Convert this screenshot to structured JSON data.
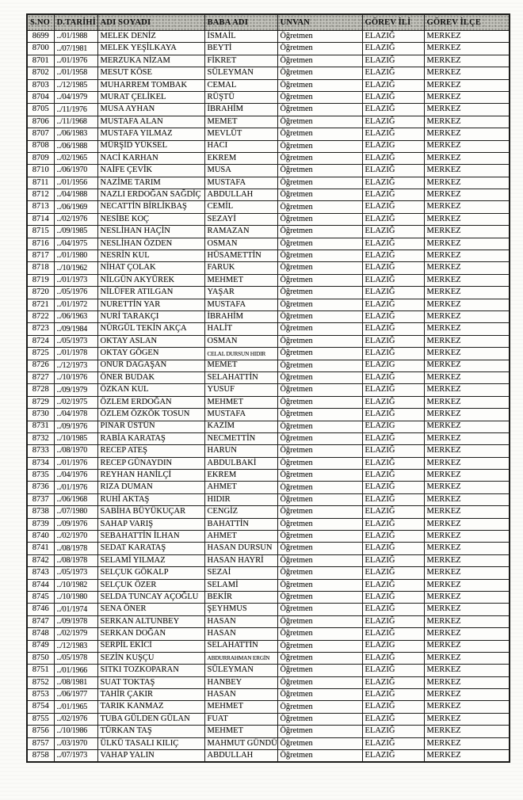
{
  "table": {
    "columns": [
      "S.NO",
      "D.TARİHİ",
      "ADI SOYADI",
      "BABA ADI",
      "UNVAN",
      "GÖREV İLİ",
      "GÖREV İLÇE"
    ],
    "col_keys": [
      "sno",
      "d-tarihi",
      "adi-soyadi",
      "baba-adi",
      "unvan",
      "gorev-ili",
      "gorev-ilce"
    ],
    "small_cells": [
      [
        26,
        3
      ],
      [
        51,
        3
      ]
    ],
    "rows": [
      [
        "8699",
        "../01/1988",
        "MELEK DENİZ",
        "İSMAİL",
        "Öğretmen",
        "ELAZIĞ",
        "MERKEZ"
      ],
      [
        "8700",
        "../07/1981",
        "MELEK YEŞİLKAYA",
        "BEYTİ",
        "Öğretmen",
        "ELAZIĞ",
        "MERKEZ"
      ],
      [
        "8701",
        "../01/1976",
        "MERZUKA NİZAM",
        "FİKRET",
        "Öğretmen",
        "ELAZIĞ",
        "MERKEZ"
      ],
      [
        "8702",
        "../01/1958",
        "MESUT KÖSE",
        "SÜLEYMAN",
        "Öğretmen",
        "ELAZIĞ",
        "MERKEZ"
      ],
      [
        "8703",
        "../12/1985",
        "MUHARREM TOMBAK",
        "CEMAL",
        "Öğretmen",
        "ELAZIĞ",
        "MERKEZ"
      ],
      [
        "8704",
        "../04/1979",
        "MURAT ÇELİKEL",
        "RÜŞTÜ",
        "Öğretmen",
        "ELAZIĞ",
        "MERKEZ"
      ],
      [
        "8705",
        "../11/1976",
        "MUSA AYHAN",
        "İBRAHİM",
        "Öğretmen",
        "ELAZIĞ",
        "MERKEZ"
      ],
      [
        "8706",
        "../11/1968",
        "MUSTAFA ALAN",
        "MEMET",
        "Öğretmen",
        "ELAZIĞ",
        "MERKEZ"
      ],
      [
        "8707",
        "../06/1983",
        "MUSTAFA YILMAZ",
        "MEVLÜT",
        "Öğretmen",
        "ELAZIĞ",
        "MERKEZ"
      ],
      [
        "8708",
        "../06/1988",
        "MÜRŞİD YÜKSEL",
        "HACI",
        "Öğretmen",
        "ELAZIĞ",
        "MERKEZ"
      ],
      [
        "8709",
        "../02/1965",
        "NACİ KARHAN",
        "EKREM",
        "Öğretmen",
        "ELAZIĞ",
        "MERKEZ"
      ],
      [
        "8710",
        "../06/1970",
        "NAİFE ÇEVİK",
        "MUSA",
        "Öğretmen",
        "ELAZIĞ",
        "MERKEZ"
      ],
      [
        "8711",
        "../01/1956",
        "NAZİME TARIM",
        "MUSTAFA",
        "Öğretmen",
        "ELAZIĞ",
        "MERKEZ"
      ],
      [
        "8712",
        "../04/1988",
        "NAZLI ERDOĞAN SAĞDİÇ",
        "ABDULLAH",
        "Öğretmen",
        "ELAZIĞ",
        "MERKEZ"
      ],
      [
        "8713",
        "../06/1969",
        "NECATTİN BİRLİKBAŞ",
        "CEMİL",
        "Öğretmen",
        "ELAZIĞ",
        "MERKEZ"
      ],
      [
        "8714",
        "../02/1976",
        "NESİBE KOÇ",
        "SEZAYİ",
        "Öğretmen",
        "ELAZIĞ",
        "MERKEZ"
      ],
      [
        "8715",
        "../09/1985",
        "NESLİHAN HAÇİN",
        "RAMAZAN",
        "Öğretmen",
        "ELAZIĞ",
        "MERKEZ"
      ],
      [
        "8716",
        "../04/1975",
        "NESLİHAN ÖZDEN",
        "OSMAN",
        "Öğretmen",
        "ELAZIĞ",
        "MERKEZ"
      ],
      [
        "8717",
        "../01/1980",
        "NESRİN KUL",
        "HÜSAMETTİN",
        "Öğretmen",
        "ELAZIĞ",
        "MERKEZ"
      ],
      [
        "8718",
        "../10/1962",
        "NİHAT ÇOLAK",
        "FARUK",
        "Öğretmen",
        "ELAZIĞ",
        "MERKEZ"
      ],
      [
        "8719",
        "../01/1973",
        "NİLGÜN AKYÜREK",
        "MEHMET",
        "Öğretmen",
        "ELAZIĞ",
        "MERKEZ"
      ],
      [
        "8720",
        "../05/1976",
        "NİLÜFER ATILGAN",
        "YAŞAR",
        "Öğretmen",
        "ELAZIĞ",
        "MERKEZ"
      ],
      [
        "8721",
        "../01/1972",
        "NURETTİN YAR",
        "MUSTAFA",
        "Öğretmen",
        "ELAZIĞ",
        "MERKEZ"
      ],
      [
        "8722",
        "../06/1963",
        "NURİ TARAKÇI",
        "İBRAHİM",
        "Öğretmen",
        "ELAZIĞ",
        "MERKEZ"
      ],
      [
        "8723",
        "../09/1984",
        "NÜRGÜL TEKİN AKÇA",
        "HALİT",
        "Öğretmen",
        "ELAZIĞ",
        "MERKEZ"
      ],
      [
        "8724",
        "../05/1973",
        "OKTAY ASLAN",
        "OSMAN",
        "Öğretmen",
        "ELAZIĞ",
        "MERKEZ"
      ],
      [
        "8725",
        "../01/1978",
        "OKTAY GÖGEN",
        "CELAL DURSUN HIDIR",
        "Öğretmen",
        "ELAZIĞ",
        "MERKEZ"
      ],
      [
        "8726",
        "../12/1973",
        "ONUR DAĞAŞAN",
        "MEMET",
        "Öğretmen",
        "ELAZIĞ",
        "MERKEZ"
      ],
      [
        "8727",
        "../10/1976",
        "ÖNER BUDAK",
        "SELAHATTİN",
        "Öğretmen",
        "ELAZIĞ",
        "MERKEZ"
      ],
      [
        "8728",
        "../09/1979",
        "ÖZKAN KUL",
        "YUSUF",
        "Öğretmen",
        "ELAZIĞ",
        "MERKEZ"
      ],
      [
        "8729",
        "../02/1975",
        "ÖZLEM ERDOĞAN",
        "MEHMET",
        "Öğretmen",
        "ELAZIĞ",
        "MERKEZ"
      ],
      [
        "8730",
        "../04/1978",
        "ÖZLEM ÖZKÖK TOSUN",
        "MUSTAFA",
        "Öğretmen",
        "ELAZIĞ",
        "MERKEZ"
      ],
      [
        "8731",
        "../09/1976",
        "PINAR ÜSTÜN",
        "KAZİM",
        "Öğretmen",
        "ELAZIĞ",
        "MERKEZ"
      ],
      [
        "8732",
        "../10/1985",
        "RABİA KARATAŞ",
        "NECMETTİN",
        "Öğretmen",
        "ELAZIĞ",
        "MERKEZ"
      ],
      [
        "8733",
        "../08/1970",
        "RECEP ATEŞ",
        "HARUN",
        "Öğretmen",
        "ELAZIĞ",
        "MERKEZ"
      ],
      [
        "8734",
        "../01/1976",
        "RECEP GÜNAYDIN",
        "ABDULBAKİ",
        "Öğretmen",
        "ELAZIĞ",
        "MERKEZ"
      ],
      [
        "8735",
        "../04/1976",
        "REYHAN HANİLÇİ",
        "EKREM",
        "Öğretmen",
        "ELAZIĞ",
        "MERKEZ"
      ],
      [
        "8736",
        "../01/1976",
        "RIZA DUMAN",
        "AHMET",
        "Öğretmen",
        "ELAZIĞ",
        "MERKEZ"
      ],
      [
        "8737",
        "../06/1968",
        "RUHİ AKTAŞ",
        "HIDIR",
        "Öğretmen",
        "ELAZIĞ",
        "MERKEZ"
      ],
      [
        "8738",
        "../07/1980",
        "SABİHA BÜYÜKUÇAR",
        "CENGİZ",
        "Öğretmen",
        "ELAZIĞ",
        "MERKEZ"
      ],
      [
        "8739",
        "../09/1976",
        "SAHAP VARIŞ",
        "BAHATTİN",
        "Öğretmen",
        "ELAZIĞ",
        "MERKEZ"
      ],
      [
        "8740",
        "../02/1970",
        "SEBAHATTİN İLHAN",
        "AHMET",
        "Öğretmen",
        "ELAZIĞ",
        "MERKEZ"
      ],
      [
        "8741",
        "../08/1978",
        "SEDAT KARATAŞ",
        "HASAN DURSUN",
        "Öğretmen",
        "ELAZIĞ",
        "MERKEZ"
      ],
      [
        "8742",
        "../08/1978",
        "SELAMİ YILMAZ",
        "HASAN HAYRİ",
        "Öğretmen",
        "ELAZIĞ",
        "MERKEZ"
      ],
      [
        "8743",
        "../05/1973",
        "SELÇUK GÖKALP",
        "SEZAİ",
        "Öğretmen",
        "ELAZIĞ",
        "MERKEZ"
      ],
      [
        "8744",
        "../10/1982",
        "SELÇUK ÖZER",
        "SELAMİ",
        "Öğretmen",
        "ELAZIĞ",
        "MERKEZ"
      ],
      [
        "8745",
        "../10/1980",
        "SELDA TUNCAY AÇOĞLU",
        "BEKİR",
        "Öğretmen",
        "ELAZIĞ",
        "MERKEZ"
      ],
      [
        "8746",
        "../01/1974",
        "SENA ÖNER",
        "ŞEYHMUS",
        "Öğretmen",
        "ELAZIĞ",
        "MERKEZ"
      ],
      [
        "8747",
        "../09/1978",
        "SERKAN ALTUNBEY",
        "HASAN",
        "Öğretmen",
        "ELAZIĞ",
        "MERKEZ"
      ],
      [
        "8748",
        "../02/1979",
        "SERKAN DOĞAN",
        "HASAN",
        "Öğretmen",
        "ELAZIĞ",
        "MERKEZ"
      ],
      [
        "8749",
        "../12/1983",
        "SERPİL EKİCİ",
        "SELAHATTİN",
        "Öğretmen",
        "ELAZIĞ",
        "MERKEZ"
      ],
      [
        "8750",
        "../05/1978",
        "SEZİN KUŞÇU",
        "ABDURRAHMAN ERGİN",
        "Öğretmen",
        "ELAZIĞ",
        "MERKEZ"
      ],
      [
        "8751",
        "../01/1966",
        "SITKI TOZKOPARAN",
        "SÜLEYMAN",
        "Öğretmen",
        "ELAZIĞ",
        "MERKEZ"
      ],
      [
        "8752",
        "../08/1981",
        "SUAT TOKTAŞ",
        "HANBEY",
        "Öğretmen",
        "ELAZIĞ",
        "MERKEZ"
      ],
      [
        "8753",
        "../06/1977",
        "TAHİR ÇAKIR",
        "HASAN",
        "Öğretmen",
        "ELAZIĞ",
        "MERKEZ"
      ],
      [
        "8754",
        "../01/1965",
        "TARIK KANMAZ",
        "MEHMET",
        "Öğretmen",
        "ELAZIĞ",
        "MERKEZ"
      ],
      [
        "8755",
        "../02/1976",
        "TUBA GÜLDEN GÜLAN",
        "FUAT",
        "Öğretmen",
        "ELAZIĞ",
        "MERKEZ"
      ],
      [
        "8756",
        "../10/1986",
        "TÜRKAN TAŞ",
        "MEHMET",
        "Öğretmen",
        "ELAZIĞ",
        "MERKEZ"
      ],
      [
        "8757",
        "../03/1970",
        "ÜLKÜ TASALI KILIÇ",
        "MAHMUT GÜNDÜZ",
        "Öğretmen",
        "ELAZIĞ",
        "MERKEZ"
      ],
      [
        "8758",
        "../07/1973",
        "VAHAP YALIN",
        "ABDULLAH",
        "Öğretmen",
        "ELAZIĞ",
        "MERKEZ"
      ]
    ]
  }
}
